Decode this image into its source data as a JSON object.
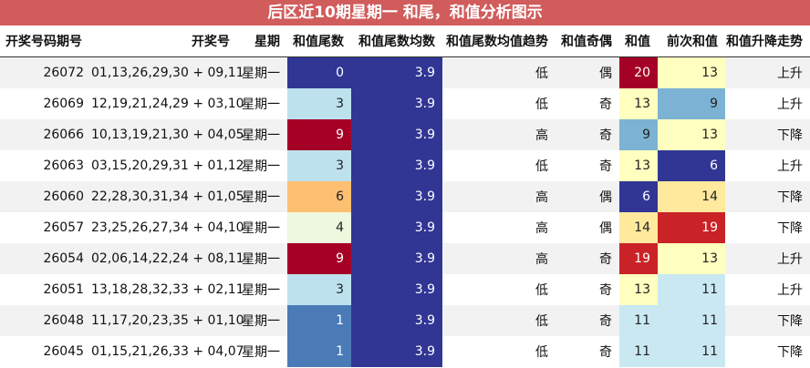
{
  "title": "后区近10期星期一 和尾，和值分析图示",
  "colors": {
    "title_bg": "#d15c5c",
    "avg_fill": "#313695"
  },
  "chart_data": {
    "type": "table",
    "title": "后区近10期星期一 和尾，和值分析图示",
    "columns": [
      "开奖号码期号",
      "开奖号",
      "星期",
      "和值尾数",
      "和值尾数均数",
      "和值尾数均值趋势",
      "和值奇偶",
      "和值",
      "前次和值",
      "和值升降走势"
    ],
    "rows": [
      {
        "period": "26072",
        "numbers": "01,13,26,29,30 + 09,11",
        "weekday": "星期一",
        "tail": "0",
        "tail_avg": "3.9",
        "trend": "低",
        "parity": "偶",
        "sum": "20",
        "prev_sum": "13",
        "direction": "上升"
      },
      {
        "period": "26069",
        "numbers": "12,19,21,24,29 + 03,10",
        "weekday": "星期一",
        "tail": "3",
        "tail_avg": "3.9",
        "trend": "低",
        "parity": "奇",
        "sum": "13",
        "prev_sum": "9",
        "direction": "上升"
      },
      {
        "period": "26066",
        "numbers": "10,13,19,21,30 + 04,05",
        "weekday": "星期一",
        "tail": "9",
        "tail_avg": "3.9",
        "trend": "高",
        "parity": "奇",
        "sum": "9",
        "prev_sum": "13",
        "direction": "下降"
      },
      {
        "period": "26063",
        "numbers": "03,15,20,29,31 + 01,12",
        "weekday": "星期一",
        "tail": "3",
        "tail_avg": "3.9",
        "trend": "低",
        "parity": "奇",
        "sum": "13",
        "prev_sum": "6",
        "direction": "上升"
      },
      {
        "period": "26060",
        "numbers": "22,28,30,31,34 + 01,05",
        "weekday": "星期一",
        "tail": "6",
        "tail_avg": "3.9",
        "trend": "高",
        "parity": "偶",
        "sum": "6",
        "prev_sum": "14",
        "direction": "下降"
      },
      {
        "period": "26057",
        "numbers": "23,25,26,27,34 + 04,10",
        "weekday": "星期一",
        "tail": "4",
        "tail_avg": "3.9",
        "trend": "高",
        "parity": "偶",
        "sum": "14",
        "prev_sum": "19",
        "direction": "下降"
      },
      {
        "period": "26054",
        "numbers": "02,06,14,22,24 + 08,11",
        "weekday": "星期一",
        "tail": "9",
        "tail_avg": "3.9",
        "trend": "高",
        "parity": "奇",
        "sum": "19",
        "prev_sum": "13",
        "direction": "上升"
      },
      {
        "period": "26051",
        "numbers": "13,18,28,32,33 + 02,11",
        "weekday": "星期一",
        "tail": "3",
        "tail_avg": "3.9",
        "trend": "低",
        "parity": "奇",
        "sum": "13",
        "prev_sum": "11",
        "direction": "上升"
      },
      {
        "period": "26048",
        "numbers": "11,17,20,23,35 + 01,10",
        "weekday": "星期一",
        "tail": "1",
        "tail_avg": "3.9",
        "trend": "低",
        "parity": "奇",
        "sum": "11",
        "prev_sum": "11",
        "direction": "下降"
      },
      {
        "period": "26045",
        "numbers": "01,15,21,26,33 + 04,07",
        "weekday": "星期一",
        "tail": "1",
        "tail_avg": "3.9",
        "trend": "低",
        "parity": "奇",
        "sum": "11",
        "prev_sum": "11",
        "direction": "下降"
      }
    ],
    "heatmap_columns": [
      "tail",
      "tail_avg",
      "sum",
      "prev_sum"
    ],
    "colormap": "RdYlBu"
  }
}
